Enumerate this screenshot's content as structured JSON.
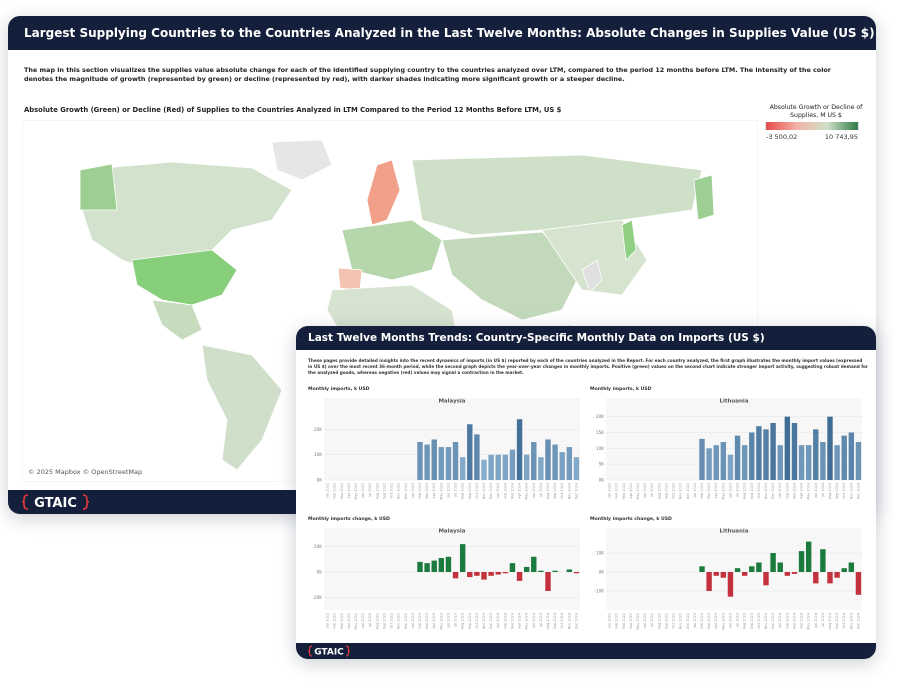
{
  "map_card": {
    "title": "Largest Supplying Countries to the Countries Analyzed in the Last Twelve Months: Absolute Changes in Supplies Value (US $)",
    "description": "The map in this section visualizes the supplies value absolute change for each of the identified supplying country to the countries analyzed over LTM, compared to the period 12 months before LTM. The intensity of the color denotes the magnitude of growth (represented by green) or decline (represented by red), with darker shades indicating more significant growth or a steeper decline.",
    "map_title": "Absolute Growth (Green) or Decline (Red) of Supplies to the Countries Analyzed in LTM Compared to the Period 12 Months Before LTM, US $",
    "attribution": "© 2025 Mapbox © OpenStreetMap",
    "legend": {
      "title": "Absolute Growth or Decline of Supplies, M US $",
      "min": {
        "value": -3500.02,
        "label": "-3 500,02"
      },
      "max": {
        "value": 10743.95,
        "label": "10 743,95"
      },
      "colors": [
        "#e8484a",
        "#f2b3a6",
        "#cfe0c9",
        "#2d7a43"
      ]
    },
    "logo": "GTAIC"
  },
  "trends_card": {
    "title": "Last Twelve Months Trends: Country-Specific Monthly Data on Imports (US $)",
    "description": "These pages provide detailed insights into the recent dynamics of imports (in US $) reported by each of the countries analyzed in the Report. For each country analyzed, the first graph illustrates the monthly import values (expressed in US $) over the most recent 36-month period, while the second graph depicts the year-over-year changes in monthly imports. Positive (green) values on the second chart indicate stronger import activity, suggesting robust demand for the analyzed goods, whereas negative (red) values may signal a contraction in the market.",
    "logo": "GTAIC"
  },
  "chart_data": [
    {
      "type": "bar",
      "label": "Monthly imports, k USD",
      "title": "Malaysia",
      "categories": [
        "Jan 2022",
        "Feb 2022",
        "Mar 2022",
        "Apr 2022",
        "May 2022",
        "Jun 2022",
        "Jul 2022",
        "Aug 2022",
        "Sep 2022",
        "Oct 2022",
        "Nov 2022",
        "Dec 2022",
        "Jan 2023",
        "Feb 2023",
        "Mar 2023",
        "Apr 2023",
        "May 2023",
        "Jun 2023",
        "Jul 2023",
        "Aug 2023",
        "Sep 2023",
        "Oct 2023",
        "Nov 2023",
        "Dec 2023",
        "Jan 2024",
        "Feb 2024",
        "Mar 2024",
        "Apr 2024",
        "May 2024",
        "Jun 2024",
        "Jul 2024",
        "Aug 2024",
        "Sep 2024",
        "Oct 2024",
        "Nov 2024",
        "Dec 2024"
      ],
      "values": [
        null,
        null,
        null,
        null,
        null,
        null,
        null,
        null,
        null,
        null,
        null,
        null,
        null,
        15,
        14,
        16,
        13,
        13,
        15,
        9,
        22,
        18,
        8,
        10,
        10,
        10,
        12,
        24,
        10,
        15,
        9,
        16,
        14,
        11,
        13,
        9
      ],
      "ylim": [
        0,
        30
      ],
      "yticks": [
        {
          "value": 0,
          "label": "0K"
        },
        {
          "value": 10,
          "label": "10K"
        },
        {
          "value": 20,
          "label": "20K"
        }
      ],
      "color_range": [
        "#a9cbe6",
        "#2b5a86"
      ],
      "grid": true
    },
    {
      "type": "bar",
      "label": "Monthly imports, k USD",
      "title": "Lithuania",
      "categories": [
        "Jan 2022",
        "Feb 2022",
        "Mar 2022",
        "Apr 2022",
        "May 2022",
        "Jun 2022",
        "Jul 2022",
        "Aug 2022",
        "Sep 2022",
        "Oct 2022",
        "Nov 2022",
        "Dec 2022",
        "Jan 2023",
        "Feb 2023",
        "Mar 2023",
        "Apr 2023",
        "May 2023",
        "Jun 2023",
        "Jul 2023",
        "Aug 2023",
        "Sep 2023",
        "Oct 2023",
        "Nov 2023",
        "Dec 2023",
        "Jan 2024",
        "Feb 2024",
        "Mar 2024",
        "Apr 2024",
        "May 2024",
        "Jun 2024",
        "Jul 2024",
        "Aug 2024",
        "Sep 2024",
        "Oct 2024",
        "Nov 2024",
        "Dec 2024"
      ],
      "values": [
        null,
        null,
        null,
        null,
        null,
        null,
        null,
        null,
        null,
        null,
        null,
        null,
        null,
        13,
        10,
        11,
        12,
        8,
        14,
        11,
        15,
        17,
        16,
        18,
        11,
        20,
        18,
        11,
        11,
        16,
        12,
        20,
        11,
        14,
        15,
        12
      ],
      "ylim": [
        0,
        24
      ],
      "yticks": [
        {
          "value": 0,
          "label": "0K"
        },
        {
          "value": 5,
          "label": "5K"
        },
        {
          "value": 10,
          "label": "10K"
        },
        {
          "value": 15,
          "label": "15K"
        },
        {
          "value": 20,
          "label": "20K"
        }
      ],
      "color_range": [
        "#a9cbe6",
        "#2b5a86"
      ],
      "grid": true
    },
    {
      "type": "diverging_bar",
      "label": "Monthly imports change, k USD",
      "title": "Malaysia",
      "categories": [
        "Jan 2022",
        "Feb 2022",
        "Mar 2022",
        "Apr 2022",
        "May 2022",
        "Jun 2022",
        "Jul 2022",
        "Aug 2022",
        "Sep 2022",
        "Oct 2022",
        "Nov 2022",
        "Dec 2022",
        "Jan 2023",
        "Feb 2023",
        "Mar 2023",
        "Apr 2023",
        "May 2023",
        "Jun 2023",
        "Jul 2023",
        "Aug 2023",
        "Sep 2023",
        "Oct 2023",
        "Nov 2023",
        "Dec 2023",
        "Jan 2024",
        "Feb 2024",
        "Mar 2024",
        "Apr 2024",
        "May 2024",
        "Jun 2024",
        "Jul 2024",
        "Aug 2024",
        "Sep 2024",
        "Oct 2024",
        "Nov 2024",
        "Dec 2024"
      ],
      "values": [
        null,
        null,
        null,
        null,
        null,
        null,
        null,
        null,
        null,
        null,
        null,
        null,
        null,
        8,
        7,
        9,
        11,
        12,
        -5,
        22,
        -4,
        -3,
        -6,
        -3,
        -2,
        -1,
        7,
        -7,
        4,
        12,
        1,
        -15,
        1,
        0,
        2,
        -1
      ],
      "ylim": [
        -30,
        30
      ],
      "yticks": [
        {
          "value": -20,
          "label": "-20K"
        },
        {
          "value": 0,
          "label": "0K"
        },
        {
          "value": 20,
          "label": "20K"
        }
      ],
      "positive_color": "#1b7a3d",
      "negative_color": "#c2313c",
      "grid": true
    },
    {
      "type": "diverging_bar",
      "label": "Monthly imports change, k USD",
      "title": "Lithuania",
      "categories": [
        "Jan 2022",
        "Feb 2022",
        "Mar 2022",
        "Apr 2022",
        "May 2022",
        "Jun 2022",
        "Jul 2022",
        "Aug 2022",
        "Sep 2022",
        "Oct 2022",
        "Nov 2022",
        "Dec 2022",
        "Jan 2023",
        "Feb 2023",
        "Mar 2023",
        "Apr 2023",
        "May 2023",
        "Jun 2023",
        "Jul 2023",
        "Aug 2023",
        "Sep 2023",
        "Oct 2023",
        "Nov 2023",
        "Dec 2023",
        "Jan 2024",
        "Feb 2024",
        "Mar 2024",
        "Apr 2024",
        "May 2024",
        "Jun 2024",
        "Jul 2024",
        "Aug 2024",
        "Sep 2024",
        "Oct 2024",
        "Nov 2024",
        "Dec 2024"
      ],
      "values": [
        null,
        null,
        null,
        null,
        null,
        null,
        null,
        null,
        null,
        null,
        null,
        null,
        null,
        3,
        -10,
        -2,
        -3,
        -13,
        2,
        -2,
        3,
        5,
        -7,
        10,
        5,
        -2,
        -1,
        11,
        16,
        -6,
        12,
        -6,
        -3,
        2,
        5,
        -12
      ],
      "ylim": [
        -20,
        20
      ],
      "yticks": [
        {
          "value": -10,
          "label": "-10K"
        },
        {
          "value": 0,
          "label": "0K"
        },
        {
          "value": 10,
          "label": "10K"
        }
      ],
      "positive_color": "#1b7a3d",
      "negative_color": "#c2313c",
      "grid": true
    }
  ]
}
